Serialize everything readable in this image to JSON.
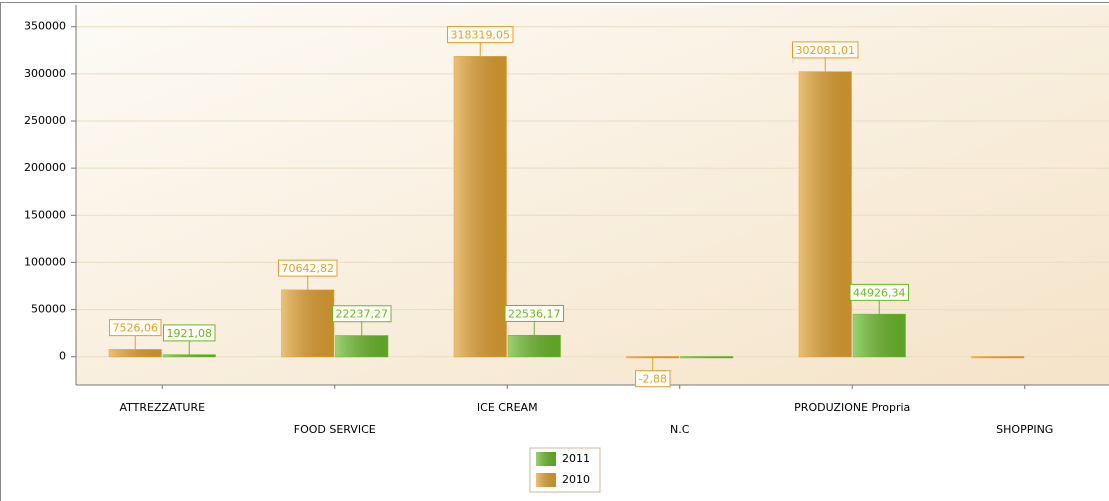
{
  "chart_data": {
    "type": "bar",
    "categories": [
      "ATTREZZATURE",
      "FOOD SERVICE",
      "ICE CREAM",
      "N.C",
      "PRODUZIONE Propria",
      "SHOPPING"
    ],
    "series": [
      {
        "name": "2010",
        "color": "#e0a030",
        "values": [
          7526.06,
          70642.82,
          318319.05,
          -2.88,
          302081.01,
          0
        ],
        "value_labels": [
          "7526,06",
          "70642,82",
          "318319,05",
          "-2,88",
          "302081,01",
          null
        ]
      },
      {
        "name": "2011",
        "color": "#6ab82a",
        "values": [
          1921.08,
          22237.27,
          22536.17,
          0,
          44926.34,
          null
        ],
        "value_labels": [
          "1921,08",
          "22237,27",
          "22536,17",
          null,
          "44926,34",
          null
        ]
      }
    ],
    "ylim": [
      -30000,
      355000
    ],
    "yticks": [
      0,
      50000,
      100000,
      150000,
      200000,
      250000,
      300000,
      350000
    ],
    "grid": true,
    "legend": "bottom"
  }
}
